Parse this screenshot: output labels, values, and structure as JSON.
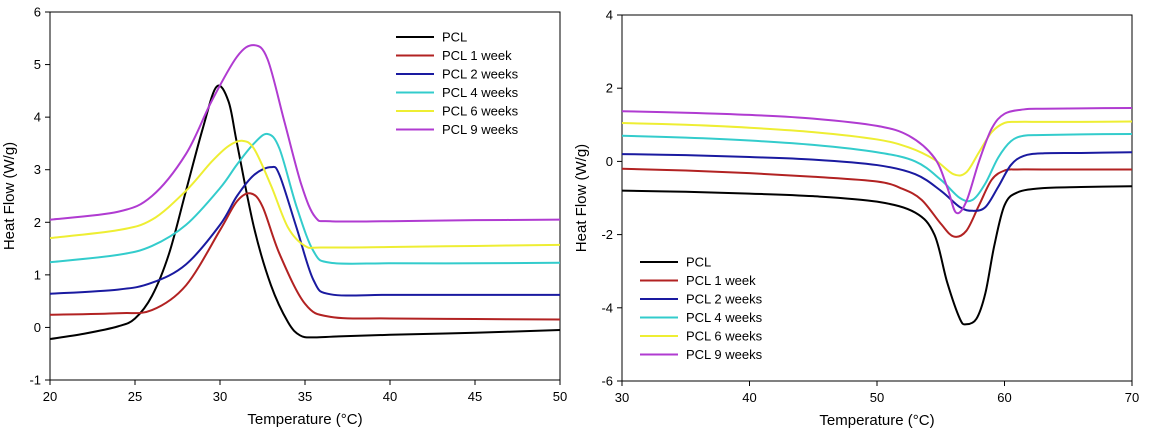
{
  "chart_data": [
    {
      "type": "line",
      "xlabel": "Temperature (°C)",
      "ylabel": "Heat Flow (W/g)",
      "xlim": [
        20,
        50
      ],
      "ylim": [
        -1,
        6
      ],
      "xticks": [
        20,
        25,
        30,
        35,
        40,
        45,
        50
      ],
      "yticks": [
        -1,
        0,
        1,
        2,
        3,
        4,
        5,
        6
      ],
      "grid": false,
      "legend_position": "top-right",
      "series": [
        {
          "name": "PCL",
          "color": "#000000",
          "x": [
            20,
            22,
            24,
            25,
            26,
            27,
            28,
            29,
            29.8,
            30.5,
            31,
            32,
            33,
            34,
            34.7,
            35.5,
            37,
            40,
            45,
            50
          ],
          "y": [
            -0.22,
            -0.12,
            0.02,
            0.17,
            0.6,
            1.4,
            2.6,
            3.8,
            4.58,
            4.3,
            3.5,
            1.9,
            0.8,
            0.1,
            -0.15,
            -0.19,
            -0.17,
            -0.14,
            -0.1,
            -0.05
          ]
        },
        {
          "name": "PCL 1 week",
          "color": "#b22222",
          "x": [
            20,
            24,
            26,
            28,
            30,
            31,
            31.8,
            32.5,
            33.5,
            35,
            36.5,
            40,
            45,
            50
          ],
          "y": [
            0.24,
            0.27,
            0.33,
            0.8,
            1.85,
            2.4,
            2.55,
            2.3,
            1.4,
            0.45,
            0.2,
            0.17,
            0.16,
            0.15
          ]
        },
        {
          "name": "PCL 2 weeks",
          "color": "#1a1aa0",
          "x": [
            20,
            24,
            26,
            28,
            30,
            31,
            32,
            33,
            33.5,
            34.5,
            35.5,
            36.5,
            40,
            45,
            50
          ],
          "y": [
            0.64,
            0.72,
            0.85,
            1.2,
            1.95,
            2.5,
            2.9,
            3.05,
            2.9,
            1.9,
            0.9,
            0.63,
            0.62,
            0.62,
            0.62
          ]
        },
        {
          "name": "PCL 4 weeks",
          "color": "#33cccc",
          "x": [
            20,
            24,
            26,
            28,
            30,
            31,
            32,
            32.8,
            33.5,
            34.5,
            35.5,
            36.5,
            40,
            45,
            50
          ],
          "y": [
            1.24,
            1.38,
            1.55,
            1.95,
            2.65,
            3.1,
            3.5,
            3.68,
            3.4,
            2.3,
            1.45,
            1.23,
            1.22,
            1.22,
            1.23
          ]
        },
        {
          "name": "PCL 6 weeks",
          "color": "#eeee33",
          "x": [
            20,
            24,
            26,
            28,
            29.5,
            30.5,
            31.3,
            32,
            33,
            34,
            35,
            36,
            40,
            45,
            50
          ],
          "y": [
            1.7,
            1.85,
            2.05,
            2.6,
            3.15,
            3.45,
            3.55,
            3.4,
            2.7,
            1.9,
            1.55,
            1.52,
            1.53,
            1.55,
            1.57
          ]
        },
        {
          "name": "PCL 9 weeks",
          "color": "#b03bd1",
          "x": [
            20,
            24,
            26,
            28,
            29.5,
            31,
            32,
            32.8,
            33.8,
            34.8,
            35.6,
            36.5,
            40,
            45,
            50
          ],
          "y": [
            2.05,
            2.2,
            2.5,
            3.3,
            4.3,
            5.15,
            5.37,
            5.1,
            3.9,
            2.7,
            2.1,
            2.02,
            2.02,
            2.04,
            2.05
          ]
        }
      ]
    },
    {
      "type": "line",
      "xlabel": "Temperature (°C)",
      "ylabel": "Heat Flow (W/g)",
      "xlim": [
        30,
        70
      ],
      "ylim": [
        -6,
        4
      ],
      "xticks": [
        30,
        40,
        50,
        60,
        70
      ],
      "yticks": [
        -6,
        -4,
        -2,
        0,
        2,
        4
      ],
      "grid": false,
      "legend_position": "bottom-left",
      "series": [
        {
          "name": "PCL",
          "color": "#000000",
          "x": [
            30,
            35,
            40,
            45,
            50,
            53,
            54.5,
            55.5,
            56.5,
            57,
            57.8,
            58.5,
            59.2,
            60,
            61,
            63,
            66,
            70
          ],
          "y": [
            -0.8,
            -0.83,
            -0.88,
            -0.95,
            -1.1,
            -1.4,
            -2.0,
            -3.3,
            -4.3,
            -4.45,
            -4.3,
            -3.6,
            -2.3,
            -1.2,
            -0.85,
            -0.73,
            -0.7,
            -0.68
          ]
        },
        {
          "name": "PCL 1 week",
          "color": "#b22222",
          "x": [
            30,
            35,
            40,
            45,
            50,
            52,
            53.5,
            55,
            56,
            57,
            58,
            59,
            60,
            61,
            63,
            70
          ],
          "y": [
            -0.2,
            -0.25,
            -0.32,
            -0.42,
            -0.55,
            -0.75,
            -1.05,
            -1.7,
            -2.05,
            -1.9,
            -1.2,
            -0.5,
            -0.25,
            -0.22,
            -0.22,
            -0.22
          ]
        },
        {
          "name": "PCL 2 weeks",
          "color": "#1a1aa0",
          "x": [
            30,
            35,
            40,
            45,
            50,
            53,
            55,
            56.5,
            57.5,
            58.5,
            59.5,
            60.5,
            61.5,
            63,
            66,
            70
          ],
          "y": [
            0.2,
            0.17,
            0.12,
            0.05,
            -0.1,
            -0.35,
            -0.8,
            -1.25,
            -1.35,
            -1.25,
            -0.7,
            -0.1,
            0.15,
            0.22,
            0.23,
            0.25
          ]
        },
        {
          "name": "PCL 4 weeks",
          "color": "#33cccc",
          "x": [
            30,
            35,
            40,
            45,
            50,
            53,
            55,
            56.5,
            57.5,
            58.5,
            59.5,
            60.5,
            61.5,
            63,
            66,
            70
          ],
          "y": [
            0.7,
            0.65,
            0.57,
            0.45,
            0.25,
            0.0,
            -0.5,
            -1.0,
            -1.05,
            -0.6,
            0.1,
            0.55,
            0.7,
            0.72,
            0.74,
            0.75
          ]
        },
        {
          "name": "PCL 6 weeks",
          "color": "#eeee33",
          "x": [
            30,
            35,
            40,
            45,
            50,
            52.5,
            54.5,
            56,
            57,
            58,
            59,
            60,
            61,
            63,
            66,
            70
          ],
          "y": [
            1.05,
            1.0,
            0.92,
            0.8,
            0.6,
            0.38,
            0.05,
            -0.35,
            -0.3,
            0.25,
            0.8,
            1.05,
            1.08,
            1.08,
            1.08,
            1.09
          ]
        },
        {
          "name": "PCL 9 weeks",
          "color": "#b03bd1",
          "x": [
            30,
            35,
            40,
            45,
            50,
            52.5,
            54.5,
            55.5,
            56.2,
            57,
            58,
            59,
            60,
            61.5,
            63,
            66,
            70
          ],
          "y": [
            1.37,
            1.33,
            1.27,
            1.17,
            0.97,
            0.7,
            0.1,
            -0.7,
            -1.4,
            -1.1,
            0.0,
            0.9,
            1.3,
            1.42,
            1.44,
            1.45,
            1.46
          ]
        }
      ]
    }
  ]
}
